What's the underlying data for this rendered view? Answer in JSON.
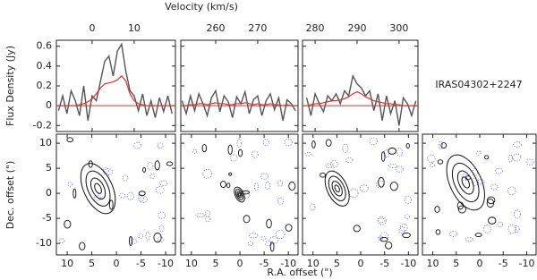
{
  "labels": {
    "velocity_title": "Velocity (km/s)",
    "flux_title": "Flux Density (Jy)",
    "dec_title": "Dec. offset (\")",
    "ra_title": "R.A. offset (\")",
    "source": "IRAS04302+2247"
  },
  "chart_data": [
    {
      "type": "spectrum",
      "xlim": [
        -8.5,
        19.8
      ],
      "ylim": [
        -0.26,
        0.66
      ],
      "xticks": [
        0,
        10
      ],
      "yticks": [
        -0.2,
        0,
        0.2,
        0.4,
        0.6
      ],
      "x": [
        -8,
        -7,
        -6,
        -5,
        -4,
        -3,
        -2,
        -1,
        0,
        1,
        2,
        3,
        4,
        5,
        6,
        7,
        8,
        9,
        10,
        11,
        12,
        13,
        14,
        15,
        16,
        17,
        18,
        19
      ],
      "series": [
        {
          "color": "#555555",
          "values": [
            -0.05,
            0.1,
            -0.08,
            0.15,
            0.05,
            -0.1,
            0.2,
            -0.15,
            0.1,
            0.05,
            0.25,
            0.45,
            0.5,
            0.3,
            0.55,
            0.62,
            0.35,
            0.15,
            0.1,
            -0.05,
            0.12,
            -0.1,
            0.05,
            -0.12,
            0.08,
            -0.06,
            0.1,
            -0.08
          ]
        },
        {
          "color": "#e0302a",
          "values": [
            0,
            0,
            0,
            0,
            0,
            0.01,
            0.02,
            0.04,
            0.07,
            0.12,
            0.18,
            0.22,
            0.23,
            0.24,
            0.26,
            0.3,
            0.25,
            0.12,
            0.05,
            0.02,
            0.01,
            0,
            0,
            0,
            0,
            0,
            0,
            0
          ]
        }
      ]
    },
    {
      "type": "spectrum",
      "xlim": [
        251.7,
        279.6
      ],
      "ylim": [
        -0.26,
        0.66
      ],
      "xticks": [
        260,
        270
      ],
      "yticks": [
        -0.2,
        0,
        0.2,
        0.4,
        0.6
      ],
      "x": [
        252,
        253,
        254,
        255,
        256,
        257,
        258,
        259,
        260,
        261,
        262,
        263,
        264,
        265,
        266,
        267,
        268,
        269,
        270,
        271,
        272,
        273,
        274,
        275,
        276,
        277,
        278,
        279
      ],
      "series": [
        {
          "color": "#555555",
          "values": [
            0.05,
            -0.08,
            0.1,
            -0.05,
            0.12,
            0.02,
            -0.1,
            0.08,
            0.15,
            -0.06,
            0.1,
            0.04,
            -0.12,
            0.09,
            0.02,
            0.14,
            -0.08,
            0.06,
            0.1,
            -0.1,
            0.05,
            0.12,
            -0.04,
            0.08,
            -0.15,
            0.06,
            0.02,
            -0.05
          ]
        },
        {
          "color": "#e0302a",
          "values": [
            0,
            0,
            0.01,
            0.01,
            0.02,
            0.02,
            0.01,
            0.02,
            0.03,
            0.02,
            0.02,
            0.01,
            0.01,
            0.02,
            0.02,
            0.03,
            0.02,
            0.01,
            0.02,
            0.01,
            0.01,
            0.02,
            0.01,
            0.01,
            0,
            0.01,
            0,
            0
          ]
        }
      ]
    },
    {
      "type": "spectrum",
      "xlim": [
        277,
        304.5
      ],
      "ylim": [
        -0.26,
        0.66
      ],
      "xticks": [
        280,
        290,
        300
      ],
      "yticks": [
        -0.2,
        0,
        0.2,
        0.4,
        0.6
      ],
      "x": [
        278,
        279,
        280,
        281,
        282,
        283,
        284,
        285,
        286,
        287,
        288,
        289,
        290,
        291,
        292,
        293,
        294,
        295,
        296,
        297,
        298,
        299,
        300,
        301,
        302,
        303,
        304
      ],
      "series": [
        {
          "color": "#555555",
          "values": [
            0.08,
            -0.1,
            0.12,
            0.02,
            -0.06,
            0.1,
            0.05,
            0.12,
            0.02,
            0.15,
            0.1,
            0.3,
            0.22,
            0.18,
            0.1,
            0.15,
            -0.05,
            0.12,
            -0.15,
            0.1,
            -0.08,
            0.05,
            -0.2,
            0.08,
            0.02,
            -0.1,
            0.05
          ]
        },
        {
          "color": "#e0302a",
          "values": [
            0,
            0.01,
            0.02,
            0.02,
            0.03,
            0.04,
            0.05,
            0.05,
            0.06,
            0.07,
            0.09,
            0.12,
            0.14,
            0.12,
            0.09,
            0.07,
            0.05,
            0.04,
            0.03,
            0.02,
            0.02,
            0.01,
            0.01,
            0,
            0,
            0,
            0
          ]
        }
      ]
    },
    {
      "type": "map",
      "xlim": [
        12.2,
        -12
      ],
      "ylim": [
        -12.3,
        11.8
      ],
      "xticks": [
        10,
        5,
        0,
        -5,
        -10
      ],
      "yticks": [
        -10,
        -5,
        0,
        5,
        10
      ]
    },
    {
      "type": "map",
      "xlim": [
        12.2,
        -12
      ],
      "ylim": [
        -12.3,
        11.8
      ],
      "xticks": [
        10,
        5,
        0,
        -5,
        -10
      ],
      "yticks": [
        -10,
        -5,
        0,
        5,
        10
      ]
    },
    {
      "type": "map",
      "xlim": [
        12.2,
        -12
      ],
      "ylim": [
        -12.3,
        11.8
      ],
      "xticks": [
        10,
        5,
        0,
        -5,
        -10
      ],
      "yticks": [
        -10,
        -5,
        0,
        5,
        10
      ]
    },
    {
      "type": "map",
      "xlim": [
        12.2,
        -12
      ],
      "ylim": [
        -12.3,
        11.8
      ],
      "xticks": [
        10,
        5,
        0,
        -5,
        -10
      ],
      "yticks": [
        -10,
        -5,
        0,
        5,
        10
      ]
    }
  ]
}
